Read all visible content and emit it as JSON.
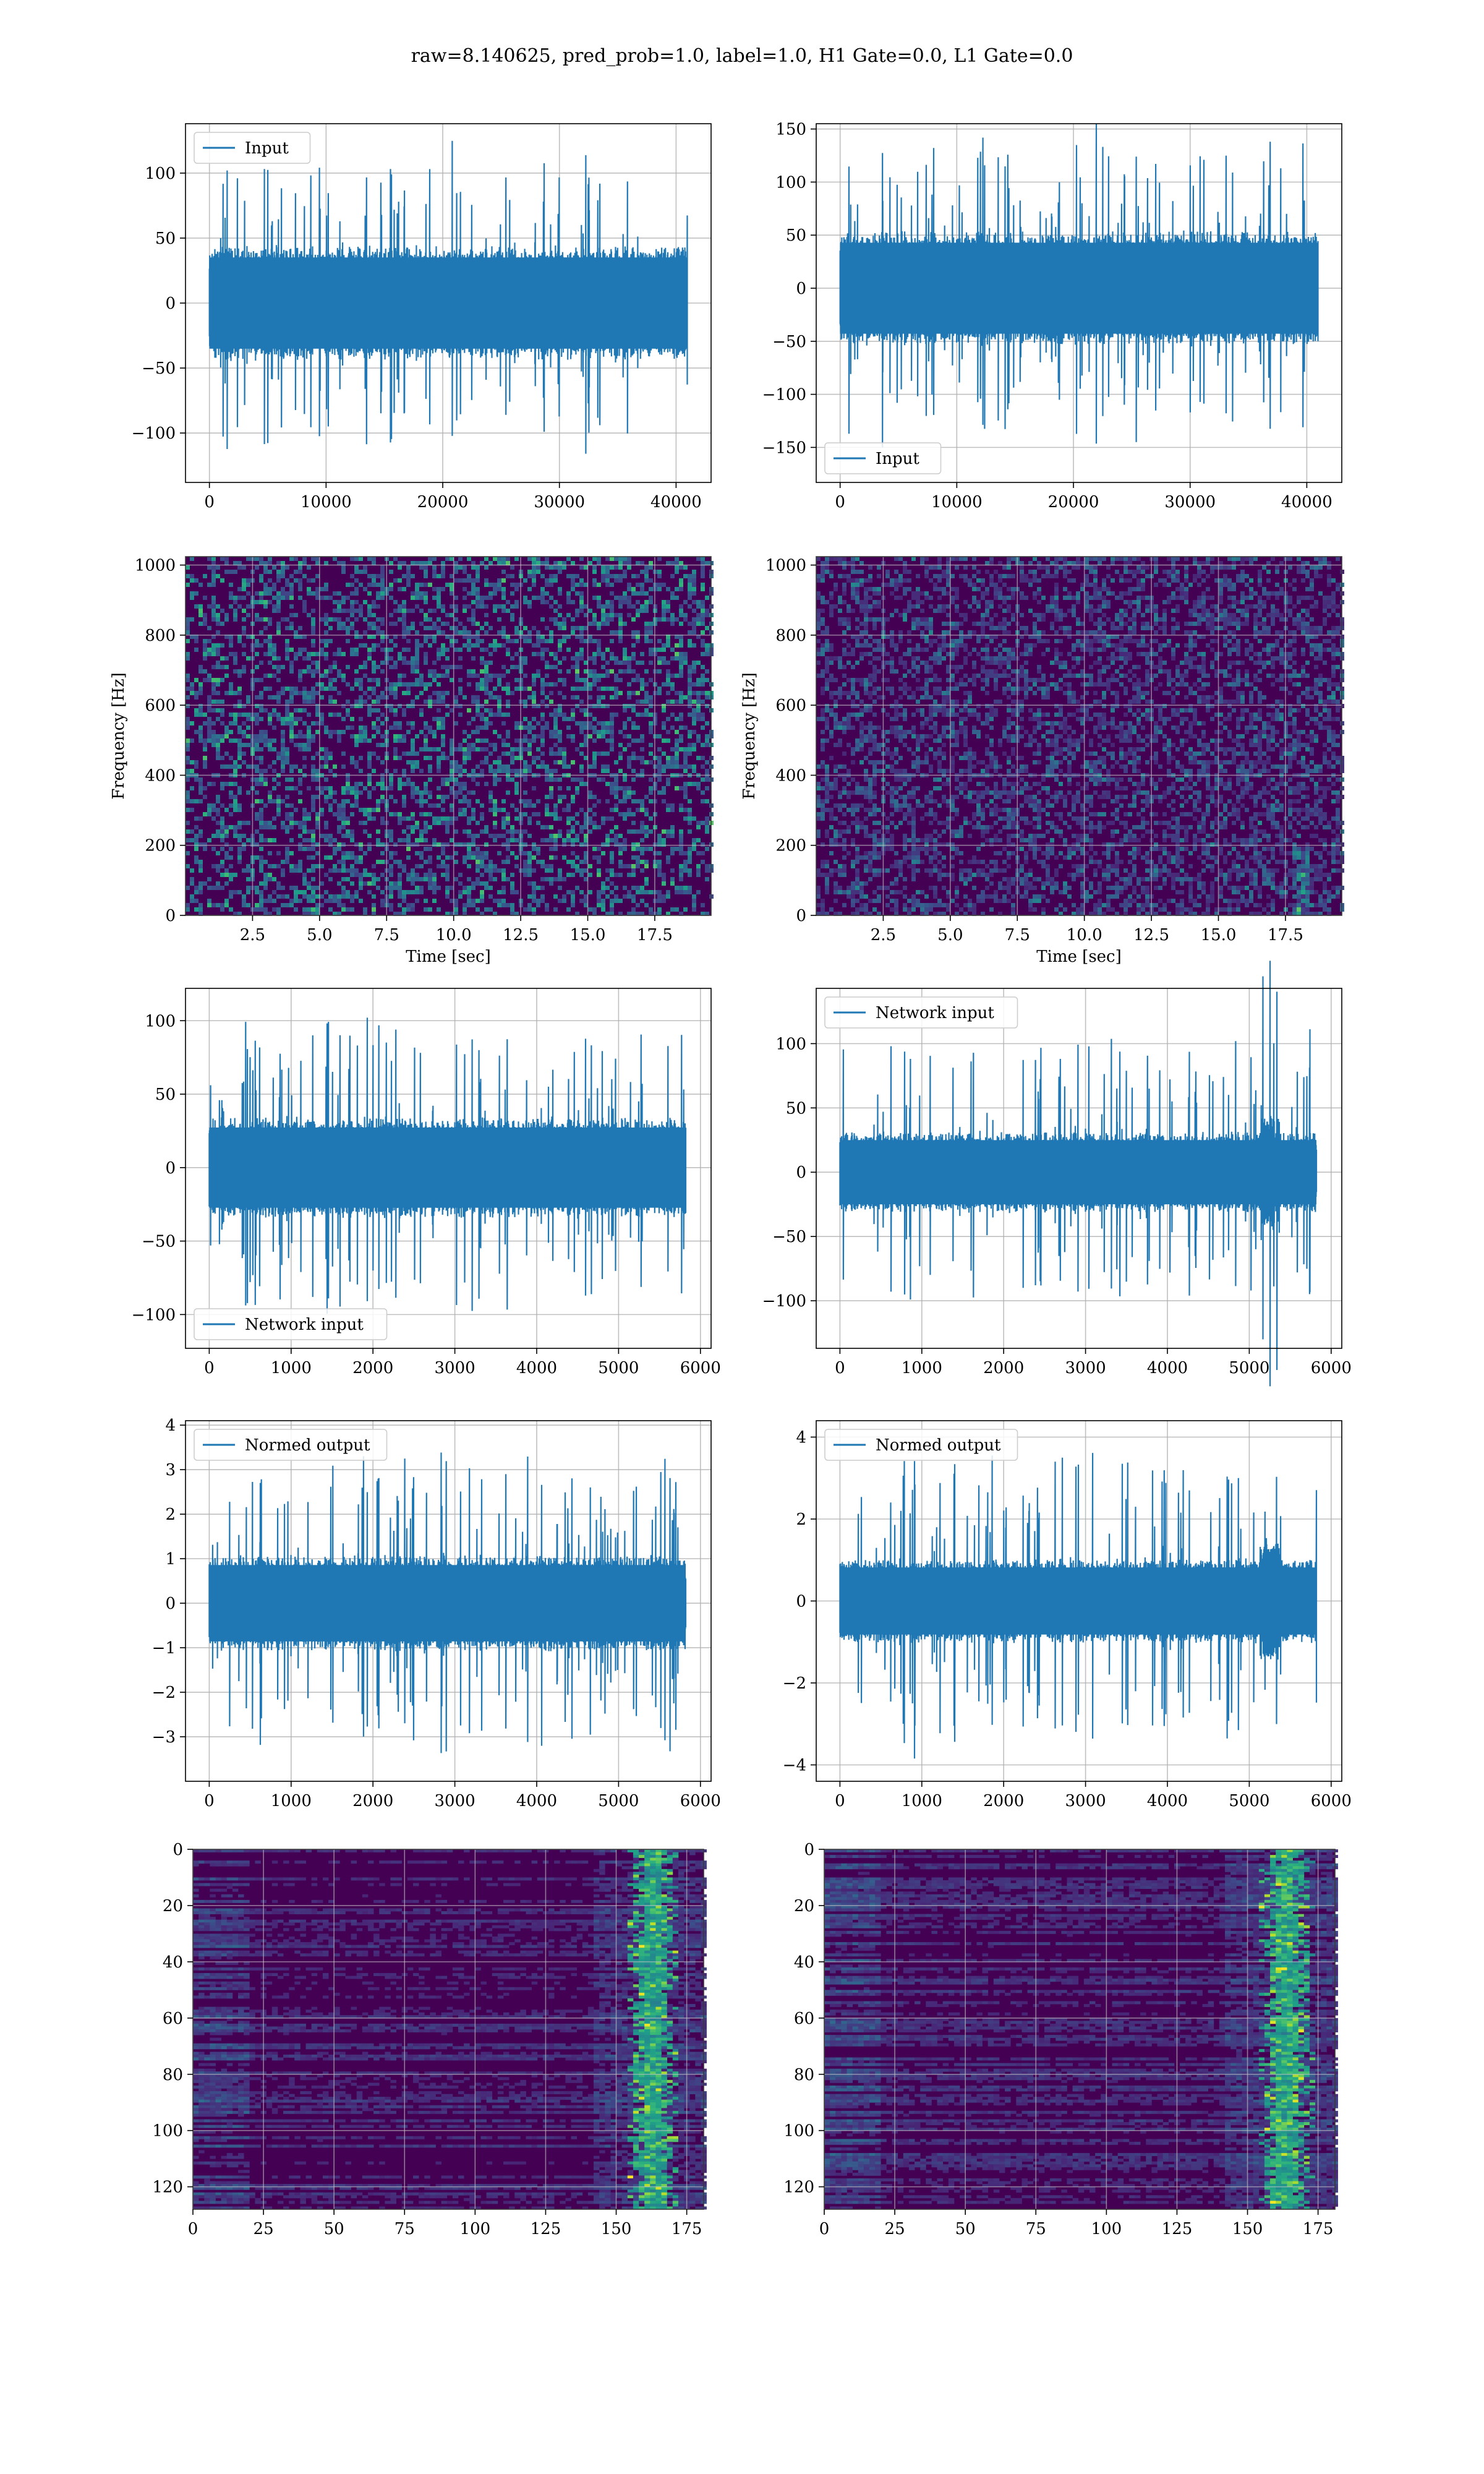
{
  "title": "raw=8.140625, pred_prob=1.0, label=1.0, H1 Gate=0.0, L1 Gate=0.0",
  "colors": {
    "series": "#1f77b4",
    "grid": "#b0b0b0",
    "viridis_dark": "#440154",
    "viridis_mid": "#21918c",
    "viridis_bright": "#fde725"
  },
  "chart_data": [
    {
      "id": "h1-input",
      "type": "line",
      "legend": "Input",
      "legend_loc": "upper left",
      "xlim": [
        -2050,
        43000
      ],
      "ylim": [
        -138,
        138
      ],
      "xticks": [
        0,
        10000,
        20000,
        30000,
        40000
      ],
      "xticklabels": [
        "0",
        "10000",
        "20000",
        "30000",
        "40000"
      ],
      "yticks": [
        -100,
        -50,
        0,
        50,
        100
      ],
      "yticklabels": [
        "−100",
        "−50",
        "0",
        "50",
        "100"
      ],
      "xlabel": "",
      "ylabel": "",
      "grid": true,
      "signal": {
        "n": 40960,
        "core": 45,
        "extreme": 125,
        "bias": 0
      }
    },
    {
      "id": "l1-input",
      "type": "line",
      "legend": "Input",
      "legend_loc": "lower left",
      "xlim": [
        -2050,
        43000
      ],
      "ylim": [
        -183,
        155
      ],
      "xticks": [
        0,
        10000,
        20000,
        30000,
        40000
      ],
      "xticklabels": [
        "0",
        "10000",
        "20000",
        "30000",
        "40000"
      ],
      "yticks": [
        -150,
        -100,
        -50,
        0,
        50,
        100,
        150
      ],
      "yticklabels": [
        "−150",
        "−100",
        "−50",
        "0",
        "50",
        "100",
        "150"
      ],
      "xlabel": "",
      "ylabel": "",
      "grid": true,
      "signal": {
        "n": 40960,
        "core": 55,
        "extreme": 160,
        "bias": 0
      }
    },
    {
      "id": "h1-spectrogram",
      "type": "heatmap",
      "legend": "",
      "colormap": "viridis",
      "xlim": [
        0,
        19.6
      ],
      "ylim": [
        0,
        1024
      ],
      "xticks": [
        2.5,
        5,
        7.5,
        10,
        12.5,
        15,
        17.5
      ],
      "xticklabels": [
        "2.5",
        "5.0",
        "7.5",
        "10.0",
        "12.5",
        "15.0",
        "17.5"
      ],
      "yticks": [
        0,
        200,
        400,
        600,
        800,
        1000
      ],
      "yticklabels": [
        "0",
        "200",
        "400",
        "600",
        "800",
        "1000"
      ],
      "xlabel": "Time [sec]",
      "ylabel": "Frequency [Hz]",
      "grid": true,
      "intensity": "medium"
    },
    {
      "id": "l1-spectrogram",
      "type": "heatmap",
      "legend": "",
      "colormap": "viridis",
      "xlim": [
        0,
        19.6
      ],
      "ylim": [
        0,
        1024
      ],
      "xticks": [
        2.5,
        5,
        7.5,
        10,
        12.5,
        15,
        17.5
      ],
      "xticklabels": [
        "2.5",
        "5.0",
        "7.5",
        "10.0",
        "12.5",
        "15.0",
        "17.5"
      ],
      "yticks": [
        0,
        200,
        400,
        600,
        800,
        1000
      ],
      "yticklabels": [
        "0",
        "200",
        "400",
        "600",
        "800",
        "1000"
      ],
      "xlabel": "Time [sec]",
      "ylabel": "Frequency [Hz]",
      "grid": true,
      "intensity": "low",
      "chirp_time": 18.0
    },
    {
      "id": "h1-network-input",
      "type": "line",
      "legend": "Network input",
      "legend_loc": "lower left",
      "xlim": [
        -290,
        6130
      ],
      "ylim": [
        -123,
        122
      ],
      "xticks": [
        0,
        1000,
        2000,
        3000,
        4000,
        5000,
        6000
      ],
      "xticklabels": [
        "0",
        "1000",
        "2000",
        "3000",
        "4000",
        "5000",
        "6000"
      ],
      "yticks": [
        -100,
        -50,
        0,
        50,
        100
      ],
      "yticklabels": [
        "−100",
        "−50",
        "0",
        "50",
        "100"
      ],
      "xlabel": "",
      "ylabel": "",
      "grid": true,
      "signal": {
        "n": 5820,
        "core": 35,
        "extreme": 105,
        "bias": 0
      }
    },
    {
      "id": "l1-network-input",
      "type": "line",
      "legend": "Network input",
      "legend_loc": "upper left",
      "xlim": [
        -290,
        6130
      ],
      "ylim": [
        -137,
        143
      ],
      "xticks": [
        0,
        1000,
        2000,
        3000,
        4000,
        5000,
        6000
      ],
      "xticklabels": [
        "0",
        "1000",
        "2000",
        "3000",
        "4000",
        "5000",
        "6000"
      ],
      "yticks": [
        -100,
        -50,
        0,
        50,
        100
      ],
      "yticklabels": [
        "−100",
        "−50",
        "0",
        "50",
        "100"
      ],
      "xlabel": "",
      "ylabel": "",
      "grid": true,
      "signal": {
        "n": 5820,
        "core": 32,
        "extreme": 115,
        "bias": 0,
        "burst_at": 5250
      }
    },
    {
      "id": "h1-normed-output",
      "type": "line",
      "legend": "Normed output",
      "legend_loc": "upper left",
      "xlim": [
        -290,
        6130
      ],
      "ylim": [
        -4.0,
        4.1
      ],
      "xticks": [
        0,
        1000,
        2000,
        3000,
        4000,
        5000,
        6000
      ],
      "xticklabels": [
        "0",
        "1000",
        "2000",
        "3000",
        "4000",
        "5000",
        "6000"
      ],
      "yticks": [
        -3,
        -2,
        -1,
        0,
        1,
        2,
        3,
        4
      ],
      "yticklabels": [
        "−3",
        "−2",
        "−1",
        "0",
        "1",
        "2",
        "3",
        "4"
      ],
      "xlabel": "",
      "ylabel": "",
      "grid": true,
      "signal": {
        "n": 5820,
        "core": 1.1,
        "extreme": 3.5,
        "bias": 0
      }
    },
    {
      "id": "l1-normed-output",
      "type": "line",
      "legend": "Normed output",
      "legend_loc": "upper left",
      "xlim": [
        -290,
        6130
      ],
      "ylim": [
        -4.4,
        4.4
      ],
      "xticks": [
        0,
        1000,
        2000,
        3000,
        4000,
        5000,
        6000
      ],
      "xticklabels": [
        "0",
        "1000",
        "2000",
        "3000",
        "4000",
        "5000",
        "6000"
      ],
      "yticks": [
        -4,
        -2,
        0,
        2,
        4
      ],
      "yticklabels": [
        "−4",
        "−2",
        "0",
        "2",
        "4"
      ],
      "xlabel": "",
      "ylabel": "",
      "grid": true,
      "signal": {
        "n": 5820,
        "core": 1.05,
        "extreme": 3.9,
        "bias": 0,
        "burst_at": 5250
      }
    },
    {
      "id": "h1-feature-map",
      "type": "heatmap",
      "legend": "",
      "colormap": "viridis",
      "xlim": [
        0,
        181
      ],
      "ylim": [
        128,
        0
      ],
      "xticks": [
        0,
        25,
        50,
        75,
        100,
        125,
        150,
        175
      ],
      "xticklabels": [
        "0",
        "25",
        "50",
        "75",
        "100",
        "125",
        "150",
        "175"
      ],
      "yticks": [
        0,
        20,
        40,
        60,
        80,
        100,
        120
      ],
      "yticklabels": [
        "0",
        "20",
        "40",
        "60",
        "80",
        "100",
        "120"
      ],
      "xlabel": "",
      "ylabel": "",
      "grid": true,
      "hot_column": 162
    },
    {
      "id": "l1-feature-map",
      "type": "heatmap",
      "legend": "",
      "colormap": "viridis",
      "xlim": [
        0,
        181
      ],
      "ylim": [
        128,
        0
      ],
      "xticks": [
        0,
        25,
        50,
        75,
        100,
        125,
        150,
        175
      ],
      "xticklabels": [
        "0",
        "25",
        "50",
        "75",
        "100",
        "125",
        "150",
        "175"
      ],
      "yticks": [
        0,
        20,
        40,
        60,
        80,
        100,
        120
      ],
      "yticklabels": [
        "0",
        "20",
        "40",
        "60",
        "80",
        "100",
        "120"
      ],
      "xlabel": "",
      "ylabel": "",
      "grid": true,
      "hot_column": 163
    }
  ]
}
